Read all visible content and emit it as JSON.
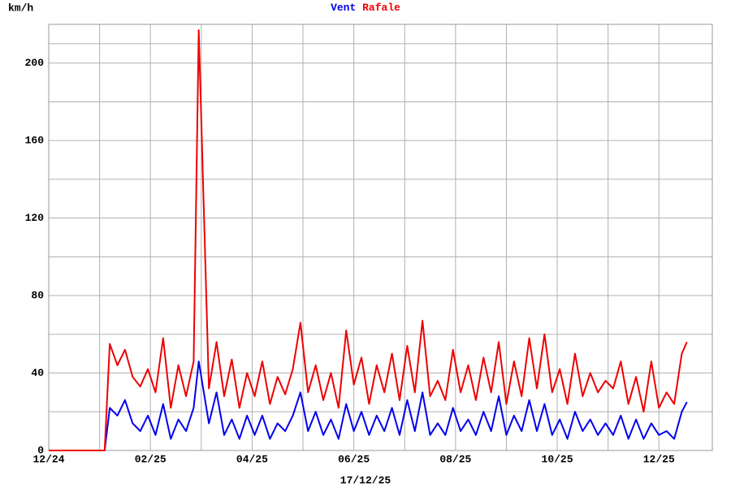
{
  "chart_data": {
    "type": "line",
    "y_label": "km/h",
    "date": "17/12/25",
    "x": [
      0,
      1.1,
      1.2,
      1.35,
      1.5,
      1.65,
      1.8,
      1.95,
      2.1,
      2.25,
      2.4,
      2.55,
      2.7,
      2.85,
      2.95,
      3.15,
      3.3,
      3.45,
      3.6,
      3.75,
      3.9,
      4.05,
      4.2,
      4.35,
      4.5,
      4.65,
      4.8,
      4.95,
      5.1,
      5.25,
      5.4,
      5.55,
      5.7,
      5.85,
      6.0,
      6.15,
      6.3,
      6.45,
      6.6,
      6.75,
      6.9,
      7.05,
      7.2,
      7.35,
      7.5,
      7.65,
      7.8,
      7.95,
      8.1,
      8.25,
      8.4,
      8.55,
      8.7,
      8.85,
      9.0,
      9.15,
      9.3,
      9.45,
      9.6,
      9.75,
      9.9,
      10.05,
      10.2,
      10.35,
      10.5,
      10.65,
      10.8,
      10.95,
      11.1,
      11.25,
      11.4,
      11.55,
      11.7,
      11.85,
      12.0,
      12.15,
      12.3,
      12.45,
      12.55
    ],
    "series": [
      {
        "name": "Vent",
        "color": "#0000ee",
        "values": [
          0,
          0,
          22,
          18,
          26,
          14,
          10,
          18,
          8,
          24,
          6,
          16,
          10,
          22,
          46,
          14,
          30,
          8,
          16,
          6,
          18,
          8,
          18,
          6,
          14,
          10,
          18,
          30,
          10,
          20,
          8,
          16,
          6,
          24,
          10,
          20,
          8,
          18,
          10,
          22,
          8,
          26,
          10,
          30,
          8,
          14,
          8,
          22,
          10,
          16,
          8,
          20,
          10,
          28,
          8,
          18,
          10,
          26,
          10,
          24,
          8,
          16,
          6,
          20,
          10,
          16,
          8,
          14,
          8,
          18,
          6,
          16,
          6,
          14,
          8,
          10,
          6,
          20,
          25
        ]
      },
      {
        "name": "Rafale",
        "color": "#ee0000",
        "values": [
          0,
          0,
          55,
          44,
          52,
          38,
          33,
          42,
          30,
          58,
          22,
          44,
          28,
          46,
          217,
          32,
          56,
          28,
          47,
          22,
          40,
          28,
          46,
          24,
          38,
          29,
          42,
          66,
          30,
          44,
          26,
          40,
          22,
          62,
          34,
          48,
          24,
          44,
          30,
          50,
          26,
          54,
          30,
          67,
          28,
          36,
          26,
          52,
          30,
          44,
          26,
          48,
          30,
          56,
          24,
          46,
          28,
          58,
          32,
          60,
          30,
          42,
          24,
          50,
          28,
          40,
          30,
          36,
          32,
          46,
          24,
          38,
          20,
          46,
          22,
          30,
          24,
          50,
          56
        ]
      }
    ],
    "xlim": [
      0,
      13.05
    ],
    "xticks": [
      {
        "value": 0,
        "label": "12/24"
      },
      {
        "value": 2,
        "label": "02/25"
      },
      {
        "value": 4,
        "label": "04/25"
      },
      {
        "value": 6,
        "label": "06/25"
      },
      {
        "value": 8,
        "label": "08/25"
      },
      {
        "value": 10,
        "label": "10/25"
      },
      {
        "value": 12,
        "label": "12/25"
      }
    ],
    "ylim": [
      0,
      220
    ],
    "yticks": [
      0,
      40,
      80,
      120,
      160,
      200
    ],
    "grid": true
  }
}
